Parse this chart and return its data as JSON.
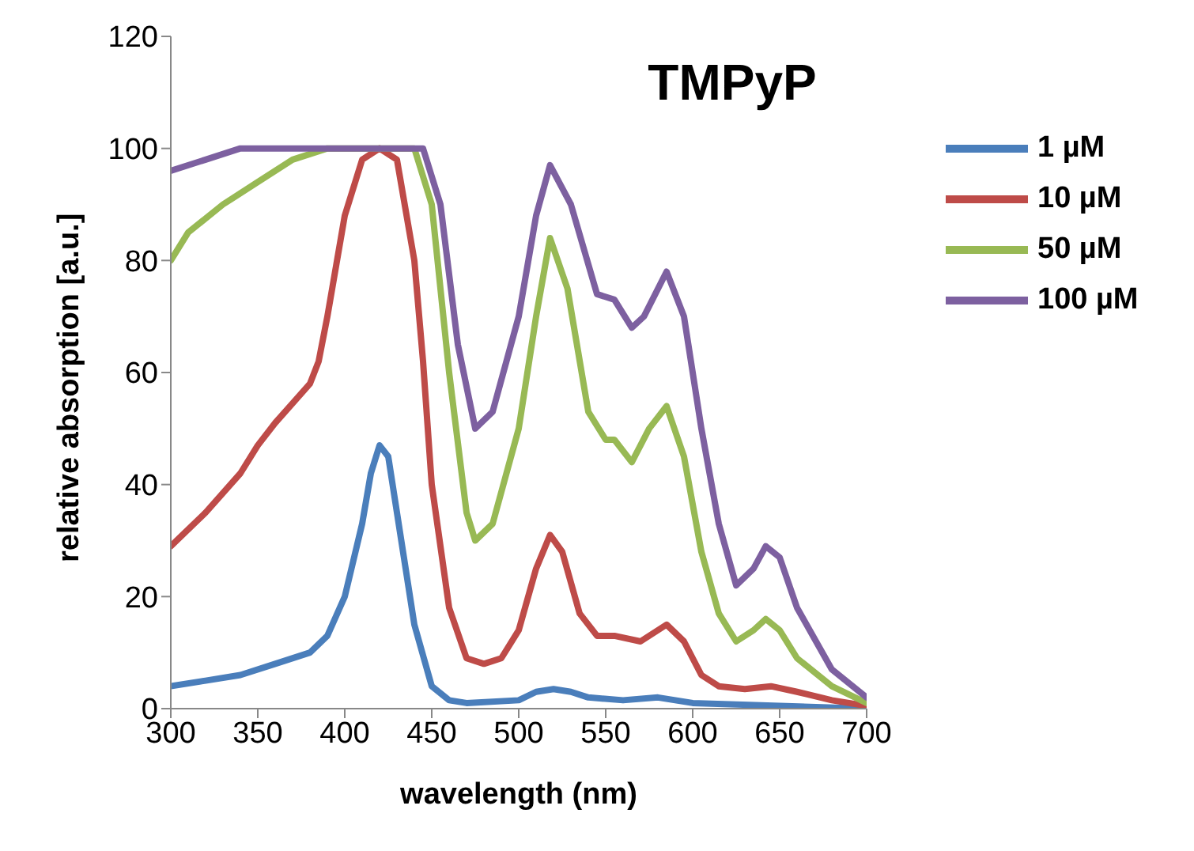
{
  "chart_data": {
    "type": "line",
    "title": "TMPyP",
    "xlabel": "wavelength (nm)",
    "ylabel": "relative absorption  [a.u.]",
    "xlim": [
      300,
      700
    ],
    "xticks": [
      300,
      350,
      400,
      450,
      500,
      550,
      600,
      650,
      700
    ],
    "ylim": [
      0,
      120
    ],
    "yticks": [
      0,
      20,
      40,
      60,
      80,
      100,
      120
    ],
    "grid": false,
    "legend": "top right",
    "marker": "none",
    "line_style": "solid",
    "series": [
      {
        "name": "1 µM",
        "color": "#4a7ebb",
        "x": [
          300,
          320,
          340,
          360,
          380,
          390,
          400,
          410,
          415,
          420,
          425,
          430,
          440,
          450,
          460,
          470,
          500,
          510,
          520,
          530,
          540,
          560,
          580,
          590,
          600,
          650,
          700
        ],
        "values": [
          4,
          5,
          6,
          8,
          10,
          13,
          20,
          33,
          42,
          47,
          45,
          35,
          15,
          4,
          1.5,
          1,
          1.5,
          3,
          3.5,
          3,
          2,
          1.5,
          2,
          1.5,
          1,
          0.5,
          0
        ]
      },
      {
        "name": "10 µM",
        "color": "#be4b48",
        "x": [
          300,
          320,
          340,
          350,
          360,
          380,
          385,
          390,
          400,
          410,
          420,
          430,
          440,
          445,
          450,
          460,
          470,
          480,
          490,
          500,
          510,
          518,
          525,
          535,
          545,
          555,
          570,
          585,
          595,
          605,
          615,
          630,
          645,
          660,
          680,
          700
        ],
        "values": [
          29,
          35,
          42,
          47,
          51,
          58,
          62,
          70,
          88,
          98,
          100,
          98,
          80,
          62,
          40,
          18,
          9,
          8,
          9,
          14,
          25,
          31,
          28,
          17,
          13,
          13,
          12,
          15,
          12,
          6,
          4,
          3.5,
          4,
          3,
          1.5,
          0.5
        ]
      },
      {
        "name": "50 µM",
        "color": "#98b954",
        "x": [
          300,
          310,
          330,
          350,
          370,
          390,
          440,
          450,
          460,
          470,
          475,
          485,
          500,
          510,
          518,
          528,
          540,
          550,
          555,
          565,
          575,
          585,
          595,
          605,
          615,
          625,
          635,
          642,
          650,
          660,
          680,
          700
        ],
        "values": [
          80,
          85,
          90,
          94,
          98,
          100,
          100,
          90,
          60,
          35,
          30,
          33,
          50,
          70,
          84,
          75,
          53,
          48,
          48,
          44,
          50,
          54,
          45,
          28,
          17,
          12,
          14,
          16,
          14,
          9,
          4,
          1
        ]
      },
      {
        "name": "100 µM",
        "color": "#7d60a0",
        "x": [
          300,
          320,
          340,
          445,
          455,
          465,
          475,
          485,
          500,
          510,
          518,
          530,
          545,
          555,
          565,
          572,
          585,
          595,
          605,
          615,
          625,
          635,
          642,
          650,
          660,
          680,
          700
        ],
        "values": [
          96,
          98,
          100,
          100,
          90,
          65,
          50,
          53,
          70,
          88,
          97,
          90,
          74,
          73,
          68,
          70,
          78,
          70,
          50,
          33,
          22,
          25,
          29,
          27,
          18,
          7,
          2
        ]
      }
    ]
  }
}
